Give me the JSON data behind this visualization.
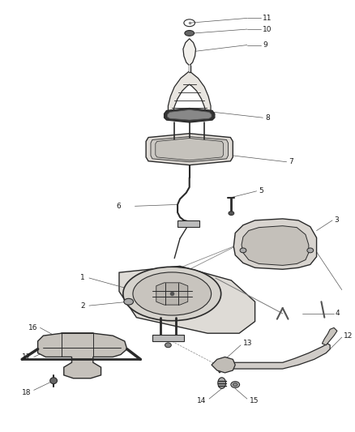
{
  "bg_color": "#ffffff",
  "line_color": "#2a2a2a",
  "label_color": "#1a1a1a",
  "label_fontsize": 6.5,
  "fig_width": 4.38,
  "fig_height": 5.33,
  "dpi": 100
}
